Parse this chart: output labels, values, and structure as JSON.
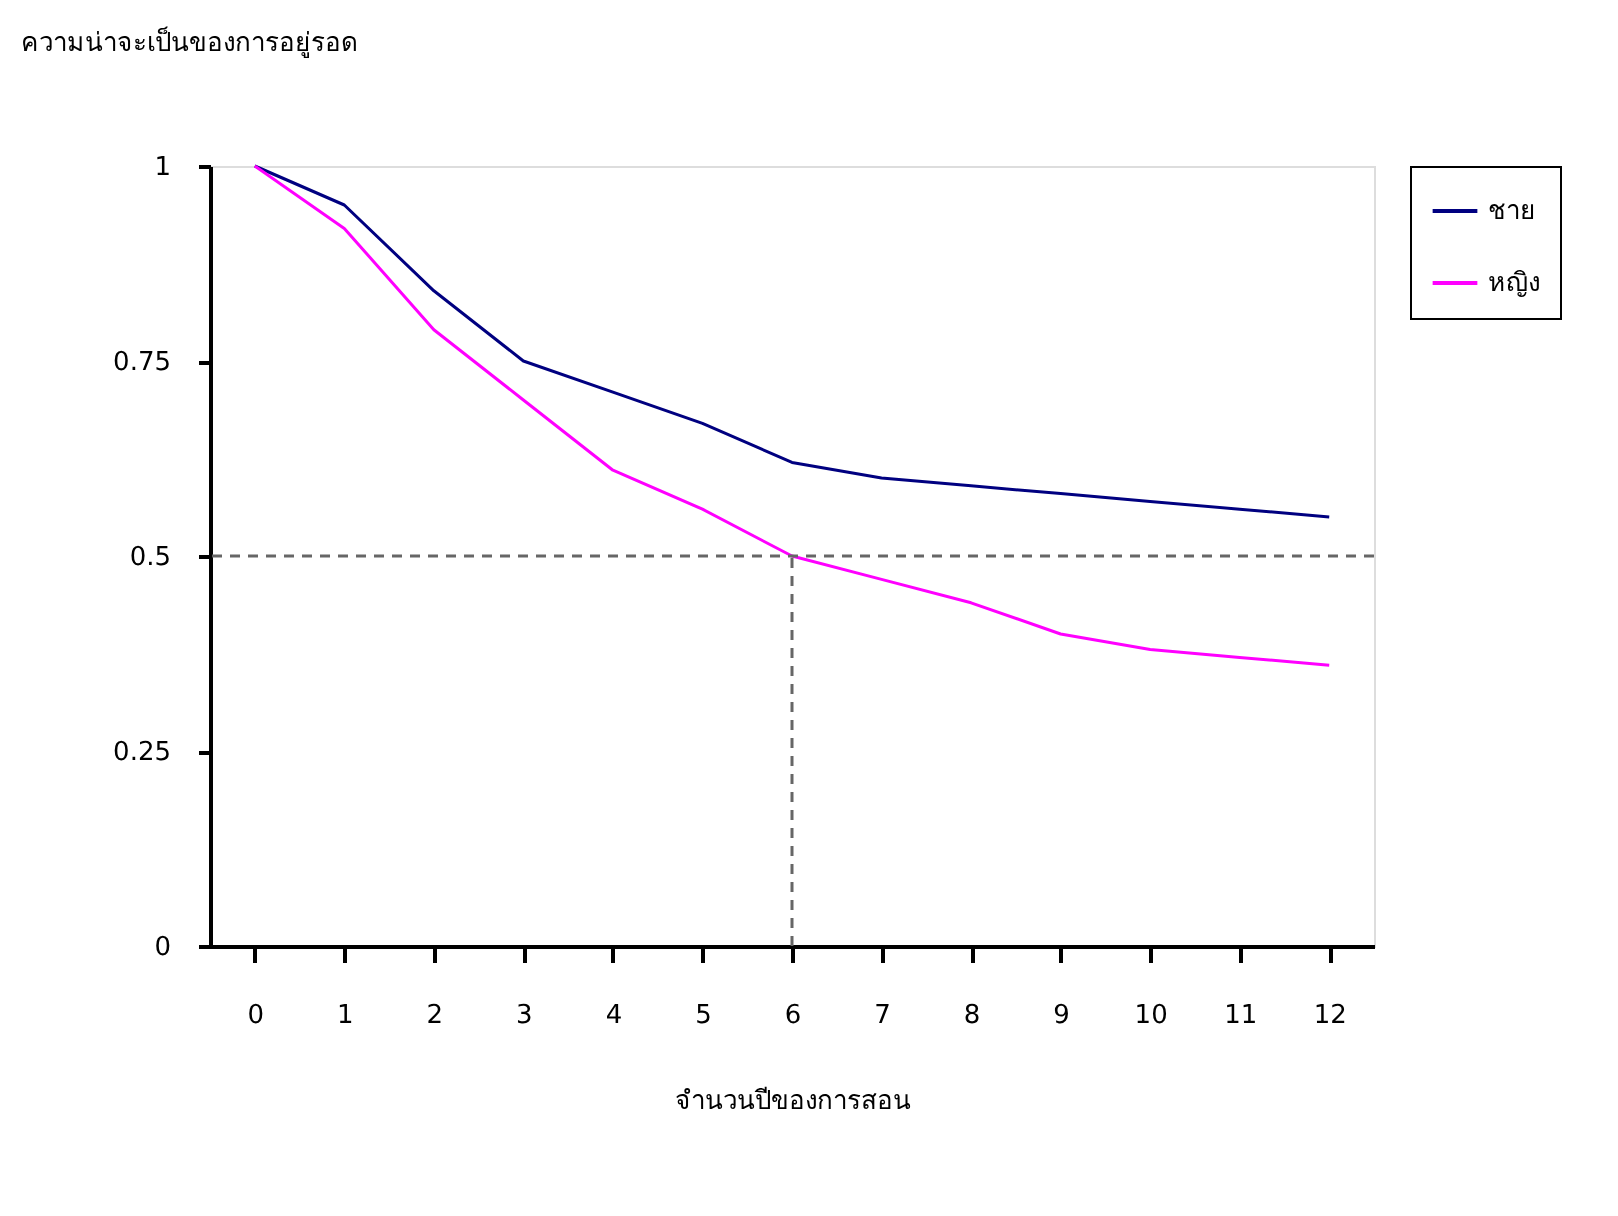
{
  "chart_data": {
    "type": "line",
    "ylabel": "ความน่าจะเป็นของการอยู่รอด",
    "xlabel": "จำนวนปีของการสอน",
    "x": [
      0,
      1,
      2,
      3,
      4,
      5,
      6,
      7,
      8,
      9,
      10,
      11,
      12
    ],
    "series": [
      {
        "name": "ชาย",
        "color": "#000080",
        "values": [
          1,
          0.95,
          0.84,
          0.75,
          0.71,
          0.67,
          0.62,
          0.6,
          0.59,
          0.58,
          0.57,
          0.56,
          0.55
        ]
      },
      {
        "name": "หญิง",
        "color": "#ff00ff",
        "values": [
          1,
          0.92,
          0.79,
          0.7,
          0.61,
          0.56,
          0.5,
          0.47,
          0.44,
          0.4,
          0.38,
          0.37,
          0.36
        ]
      }
    ],
    "xlim": [
      -0.5,
      12.5
    ],
    "xticks": [
      0,
      1,
      2,
      3,
      4,
      5,
      6,
      7,
      8,
      9,
      10,
      11,
      12
    ],
    "ylim": [
      0,
      1
    ],
    "yticks": [
      0,
      0.25,
      0.5,
      0.75,
      1
    ],
    "ref_lines": [
      {
        "axis": "y",
        "value": 0.5,
        "color": "#666666",
        "line_style": "dashed"
      },
      {
        "axis": "x",
        "value": 6,
        "color": "#666666",
        "line_style": "dashed"
      }
    ],
    "grid": false,
    "legend": "right",
    "marker": "none",
    "line_style": "solid"
  }
}
